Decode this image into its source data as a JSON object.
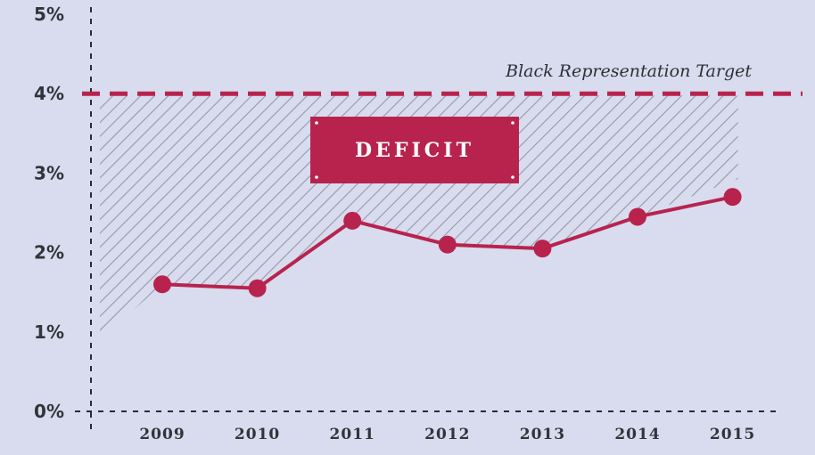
{
  "chart_data": {
    "type": "line",
    "x": [
      "2009",
      "2010",
      "2011",
      "2012",
      "2013",
      "2014",
      "2015"
    ],
    "series": [
      {
        "values": [
          1.6,
          1.55,
          2.4,
          2.1,
          2.05,
          2.45,
          2.7
        ]
      }
    ],
    "ylim": [
      0,
      5
    ],
    "yticks": [
      "0%",
      "1%",
      "2%",
      "3%",
      "4%",
      "5%"
    ],
    "target": {
      "value": 4,
      "label": "Black Representation Target"
    },
    "region_label": "DEFICIT",
    "grid": false,
    "colors": {
      "line": "#b8234e",
      "target": "#b8234e",
      "badge": "#b8234e",
      "hatch": "#8d90a0",
      "axis": "#2a2a30"
    }
  }
}
